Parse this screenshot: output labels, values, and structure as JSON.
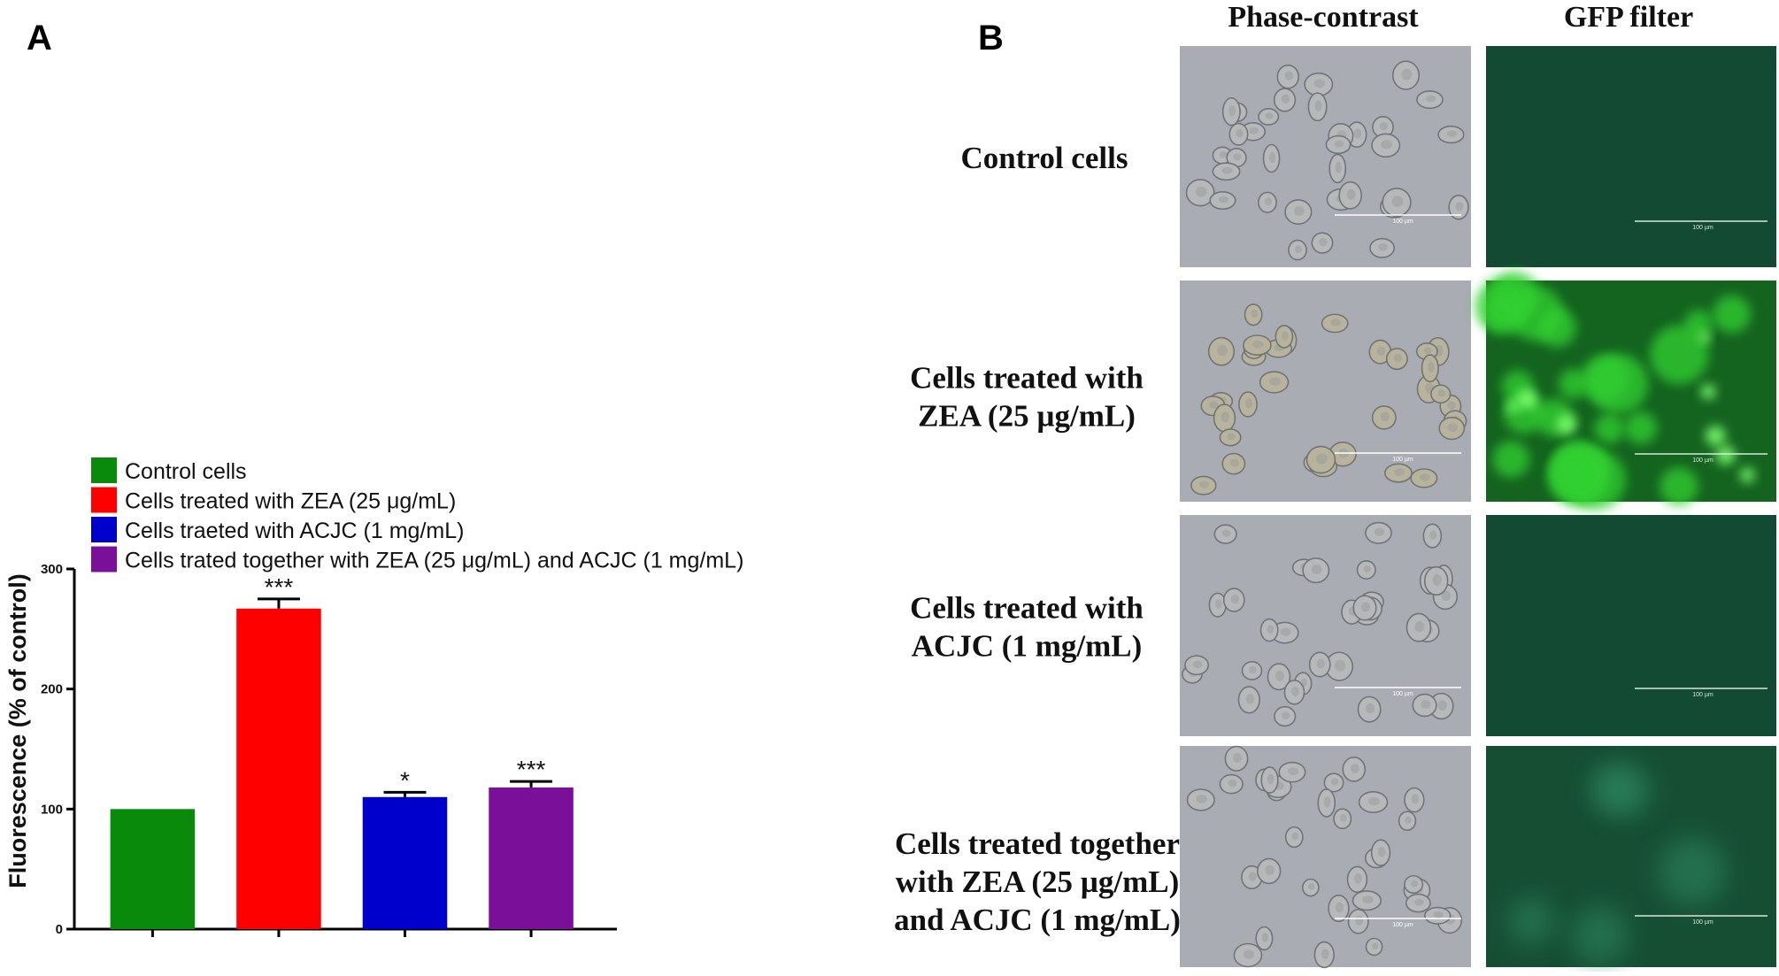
{
  "panels": {
    "a": "A",
    "b": "B"
  },
  "chart_data": {
    "type": "bar",
    "categories": [
      "Control cells",
      "Cells treated with ZEA (25 μg/mL)",
      "Cells traeted with ACJC (1 mg/mL)",
      "Cells trated together with ZEA (25 μg/mL) and ACJC (1 mg/mL)"
    ],
    "values": [
      100,
      267,
      110,
      118
    ],
    "errors": [
      0,
      8,
      4,
      5
    ],
    "significance": [
      "",
      "***",
      "*",
      "***"
    ],
    "colors": [
      "#0a8a0a",
      "#ff0000",
      "#0000cc",
      "#7a0f9a"
    ],
    "ylabel": "Fluorescence (% of control)",
    "xlabel": "",
    "ylim": [
      0,
      300
    ],
    "yticks": [
      0,
      100,
      200,
      300
    ],
    "legend_position": "top-left"
  },
  "micrographs": {
    "column_headers": [
      "Phase-contrast",
      "GFP filter"
    ],
    "rows": [
      {
        "label_lines": [
          "Control cells"
        ],
        "gfp_level": "dim"
      },
      {
        "label_lines": [
          "Cells treated with",
          "ZEA (25 µg/mL)"
        ],
        "gfp_level": "bright"
      },
      {
        "label_lines": [
          "Cells treated with",
          "ACJC (1 mg/mL)"
        ],
        "gfp_level": "dim"
      },
      {
        "label_lines": [
          "Cells treated together",
          "with ZEA (25 µg/mL)",
          "and ACJC (1 mg/mL)"
        ],
        "gfp_level": "faint"
      }
    ],
    "scale_bar_label": "100 µm"
  }
}
